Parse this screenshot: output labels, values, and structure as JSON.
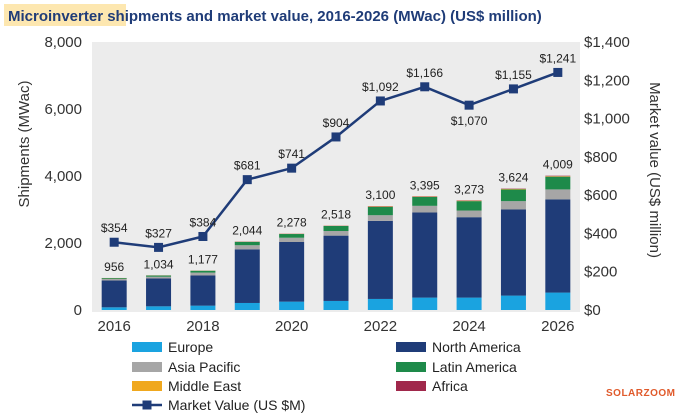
{
  "chart_data": {
    "type": "bar",
    "title_highlight": "Microinverter",
    "title_rest": " shipments and market value, 2016-2026 (MWac) (US$ million)",
    "ylabel": "Shipments (MWac)",
    "y2label": "Market value (US$ million)",
    "xlabel": "",
    "ylim": [
      0,
      8000
    ],
    "y2lim": [
      0,
      1400
    ],
    "yticks": [
      "0",
      "2,000",
      "4,000",
      "6,000",
      "8,000"
    ],
    "y2ticks": [
      "$0",
      "$200",
      "$400",
      "$600",
      "$800",
      "$1,000",
      "$1,200",
      "$1,400"
    ],
    "xticks": [
      "2016",
      "2018",
      "2020",
      "2022",
      "2024",
      "2026"
    ],
    "categories": [
      "2016",
      "2017",
      "2018",
      "2019",
      "2020",
      "2021",
      "2022",
      "2023",
      "2024",
      "2025",
      "2026"
    ],
    "totals": [
      956,
      1034,
      1177,
      2044,
      2278,
      2518,
      3100,
      3395,
      3273,
      3624,
      4009
    ],
    "total_labels": [
      "956",
      "1,034",
      "1,177",
      "2,044",
      "2,278",
      "2,518",
      "3,100",
      "3,395",
      "3,273",
      "3,624",
      "4,009"
    ],
    "series": [
      {
        "name": "Europe",
        "color": "#1aa3e0",
        "values": [
          80,
          110,
          130,
          210,
          250,
          270,
          330,
          370,
          370,
          430,
          520
        ]
      },
      {
        "name": "North America",
        "color": "#1f3c78",
        "values": [
          800,
          830,
          900,
          1600,
          1780,
          1950,
          2330,
          2540,
          2400,
          2570,
          2780
        ]
      },
      {
        "name": "Asia Pacific",
        "color": "#a6a6a6",
        "values": [
          46,
          54,
          87,
          124,
          128,
          138,
          170,
          200,
          200,
          250,
          300
        ]
      },
      {
        "name": "Latin America",
        "color": "#1e8a4a",
        "values": [
          25,
          35,
          55,
          100,
          110,
          150,
          250,
          265,
          280,
          350,
          380
        ]
      },
      {
        "name": "Middle East",
        "color": "#f0a81e",
        "values": [
          3,
          3,
          3,
          5,
          5,
          5,
          10,
          10,
          13,
          14,
          15
        ]
      },
      {
        "name": "Africa",
        "color": "#a0284b",
        "values": [
          2,
          2,
          2,
          5,
          5,
          5,
          10,
          10,
          10,
          10,
          14
        ]
      }
    ],
    "line": {
      "name": "Market Value (US $M)",
      "color": "#1f3c78",
      "values": [
        354,
        327,
        384,
        681,
        741,
        904,
        1092,
        1166,
        1070,
        1155,
        1241
      ],
      "labels": [
        "$354",
        "$327",
        "$384",
        "$681",
        "$741",
        "$904",
        "$1,092",
        "$1,166",
        "$1,070",
        "$1,155",
        "$1,241"
      ]
    },
    "legend_order": [
      "Europe",
      "North America",
      "Asia Pacific",
      "Latin America",
      "Middle East",
      "Africa",
      "Market Value (US $M)"
    ],
    "legend_placement": "bottom",
    "grid": false
  },
  "watermark": "SOLARZOOM"
}
